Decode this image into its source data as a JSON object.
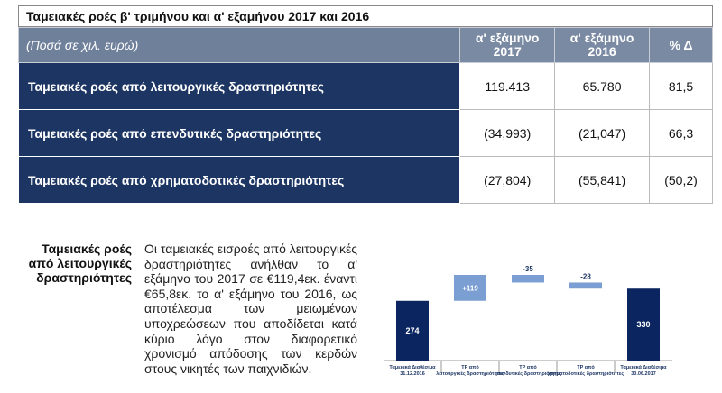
{
  "title": "Ταμειακές ροές β' τριμήνου και α' εξαμήνου 2017 και 2016",
  "table": {
    "header": [
      "(Ποσά σε χιλ. ευρώ)",
      "α' εξάμηνο 2017",
      "α' εξάμηνο 2016",
      "% Δ"
    ],
    "rows": [
      [
        "Ταμειακές ροές από λειτουργικές δραστηριότητες",
        "119.413",
        "65.780",
        "81,5"
      ],
      [
        "Ταμειακές ροές από επενδυτικές δραστηριότητες",
        "(34,993)",
        "(21,047)",
        "66,3"
      ],
      [
        "Ταμειακές ροές από χρηματοδοτικές δραστηριότητες",
        "(27,804)",
        "(55,841)",
        "(50,2)"
      ]
    ]
  },
  "section": {
    "label": "Ταμειακές ροές από λειτουργικές δραστηριότητες",
    "text": "Οι ταμειακές εισροές από λειτουργικές δραστηριότητες ανήλθαν το α' εξάμηνο του 2017 σε €119,4εκ. έναντι €65,8εκ. το α' εξάμηνο του 2016, ως αποτέλεσμα των μειωμένων υποχρεώσεων που αποδίδεται κατά κύριο λόγο στον διαφορετικό χρονισμό απόδοσης των κερδών στους νικητές των παιχνιδιών."
  },
  "chart_data": {
    "type": "waterfall",
    "categories": [
      "Ταμειακά Διαθέσιμα 31.12.2016",
      "ΤΡ από λειτουργικές δραστηριότητες",
      "ΤΡ από επενδυτικές δραστηριότητες",
      "ΤΡ από χρηματοδοτικές δραστηριότητες",
      "Ταμειακά Διαθέσιμα 30.06.2017"
    ],
    "values": [
      274,
      119,
      -35,
      -28,
      330
    ],
    "value_labels": [
      "274",
      "+119",
      "-35",
      "-28",
      "330"
    ],
    "measure": [
      "absolute",
      "relative",
      "relative",
      "relative",
      "total"
    ],
    "color_total": "#0b2560",
    "color_change": "#7c9fd3"
  }
}
